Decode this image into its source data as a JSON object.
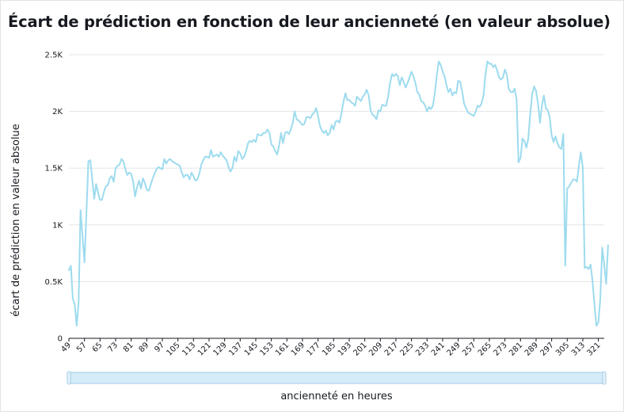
{
  "title": "Écart de prédiction en fonction de leur ancienneté (en valeur absolue)",
  "colors": {
    "line": "#9ddbee",
    "grid": "#e5e5e5",
    "axis": "#16191f",
    "brush_fill": "#d4ebf8",
    "brush_border": "#9fcbe6"
  },
  "chart_data": {
    "type": "line",
    "title": "Écart de prédiction en fonction de leur ancienneté (en valeur absolue)",
    "xlabel": "ancienneté en heures",
    "ylabel": "écart de prédiction en valeur absolue",
    "xlim": [
      49,
      324
    ],
    "ylim": [
      0,
      2500
    ],
    "x_ticks": [
      49,
      57,
      65,
      73,
      81,
      89,
      97,
      105,
      113,
      121,
      129,
      137,
      145,
      153,
      161,
      169,
      177,
      185,
      193,
      201,
      209,
      217,
      225,
      233,
      241,
      249,
      257,
      265,
      273,
      281,
      289,
      297,
      305,
      313,
      321
    ],
    "y_ticks": [
      {
        "value": 0,
        "label": "0"
      },
      {
        "value": 500,
        "label": "0.5K"
      },
      {
        "value": 1000,
        "label": "1K"
      },
      {
        "value": 1500,
        "label": "1.5K"
      },
      {
        "value": 2000,
        "label": "2K"
      },
      {
        "value": 2500,
        "label": "2.5K"
      }
    ],
    "grid": "horizontal",
    "legend": "none",
    "series": [
      {
        "points": [
          [
            49,
            600
          ],
          [
            50,
            640
          ],
          [
            51,
            350
          ],
          [
            52,
            300
          ],
          [
            53,
            110
          ],
          [
            54,
            320
          ],
          [
            55,
            1130
          ],
          [
            56,
            900
          ],
          [
            57,
            670
          ],
          [
            58,
            1100
          ],
          [
            59,
            1560
          ],
          [
            60,
            1570
          ],
          [
            61,
            1400
          ],
          [
            62,
            1230
          ],
          [
            63,
            1360
          ],
          [
            64,
            1280
          ],
          [
            65,
            1220
          ],
          [
            66,
            1220
          ],
          [
            67,
            1290
          ],
          [
            68,
            1340
          ],
          [
            69,
            1350
          ],
          [
            70,
            1410
          ],
          [
            71,
            1430
          ],
          [
            72,
            1380
          ],
          [
            73,
            1500
          ],
          [
            74,
            1520
          ],
          [
            75,
            1530
          ],
          [
            76,
            1580
          ],
          [
            77,
            1560
          ],
          [
            78,
            1490
          ],
          [
            79,
            1440
          ],
          [
            80,
            1460
          ],
          [
            81,
            1450
          ],
          [
            82,
            1380
          ],
          [
            83,
            1250
          ],
          [
            84,
            1330
          ],
          [
            85,
            1390
          ],
          [
            86,
            1320
          ],
          [
            87,
            1410
          ],
          [
            88,
            1370
          ],
          [
            89,
            1310
          ],
          [
            90,
            1300
          ],
          [
            91,
            1350
          ],
          [
            92,
            1410
          ],
          [
            93,
            1450
          ],
          [
            94,
            1490
          ],
          [
            95,
            1510
          ],
          [
            96,
            1500
          ],
          [
            97,
            1490
          ],
          [
            98,
            1580
          ],
          [
            99,
            1540
          ],
          [
            100,
            1570
          ],
          [
            101,
            1580
          ],
          [
            102,
            1560
          ],
          [
            103,
            1550
          ],
          [
            104,
            1540
          ],
          [
            105,
            1530
          ],
          [
            106,
            1520
          ],
          [
            107,
            1460
          ],
          [
            108,
            1420
          ],
          [
            109,
            1440
          ],
          [
            110,
            1440
          ],
          [
            111,
            1400
          ],
          [
            112,
            1460
          ],
          [
            113,
            1430
          ],
          [
            114,
            1390
          ],
          [
            115,
            1400
          ],
          [
            116,
            1450
          ],
          [
            117,
            1530
          ],
          [
            118,
            1570
          ],
          [
            119,
            1600
          ],
          [
            120,
            1600
          ],
          [
            121,
            1590
          ],
          [
            122,
            1660
          ],
          [
            123,
            1600
          ],
          [
            124,
            1610
          ],
          [
            125,
            1620
          ],
          [
            126,
            1600
          ],
          [
            127,
            1640
          ],
          [
            128,
            1610
          ],
          [
            129,
            1590
          ],
          [
            130,
            1570
          ],
          [
            131,
            1510
          ],
          [
            132,
            1470
          ],
          [
            133,
            1500
          ],
          [
            134,
            1600
          ],
          [
            135,
            1560
          ],
          [
            136,
            1650
          ],
          [
            137,
            1630
          ],
          [
            138,
            1580
          ],
          [
            139,
            1600
          ],
          [
            140,
            1650
          ],
          [
            141,
            1720
          ],
          [
            142,
            1740
          ],
          [
            143,
            1730
          ],
          [
            144,
            1750
          ],
          [
            145,
            1730
          ],
          [
            146,
            1800
          ],
          [
            147,
            1790
          ],
          [
            148,
            1790
          ],
          [
            149,
            1810
          ],
          [
            150,
            1810
          ],
          [
            151,
            1840
          ],
          [
            152,
            1810
          ],
          [
            153,
            1710
          ],
          [
            154,
            1690
          ],
          [
            155,
            1650
          ],
          [
            156,
            1620
          ],
          [
            157,
            1700
          ],
          [
            158,
            1810
          ],
          [
            159,
            1720
          ],
          [
            160,
            1810
          ],
          [
            161,
            1820
          ],
          [
            162,
            1800
          ],
          [
            163,
            1840
          ],
          [
            164,
            1900
          ],
          [
            165,
            2000
          ],
          [
            166,
            1930
          ],
          [
            167,
            1920
          ],
          [
            168,
            1900
          ],
          [
            169,
            1880
          ],
          [
            170,
            1890
          ],
          [
            171,
            1950
          ],
          [
            172,
            1950
          ],
          [
            173,
            1940
          ],
          [
            174,
            1970
          ],
          [
            175,
            1990
          ],
          [
            176,
            2030
          ],
          [
            177,
            1960
          ],
          [
            178,
            1870
          ],
          [
            179,
            1830
          ],
          [
            180,
            1810
          ],
          [
            181,
            1830
          ],
          [
            182,
            1790
          ],
          [
            183,
            1810
          ],
          [
            184,
            1880
          ],
          [
            185,
            1840
          ],
          [
            186,
            1910
          ],
          [
            187,
            1920
          ],
          [
            188,
            1900
          ],
          [
            189,
            1980
          ],
          [
            190,
            2080
          ],
          [
            191,
            2160
          ],
          [
            192,
            2100
          ],
          [
            193,
            2100
          ],
          [
            194,
            2080
          ],
          [
            195,
            2070
          ],
          [
            196,
            2050
          ],
          [
            197,
            2130
          ],
          [
            198,
            2110
          ],
          [
            199,
            2090
          ],
          [
            200,
            2130
          ],
          [
            201,
            2150
          ],
          [
            202,
            2190
          ],
          [
            203,
            2140
          ],
          [
            204,
            2010
          ],
          [
            205,
            1970
          ],
          [
            206,
            1960
          ],
          [
            207,
            1930
          ],
          [
            208,
            2010
          ],
          [
            209,
            2000
          ],
          [
            210,
            2060
          ],
          [
            211,
            2050
          ],
          [
            212,
            2050
          ],
          [
            213,
            2130
          ],
          [
            214,
            2250
          ],
          [
            215,
            2330
          ],
          [
            216,
            2310
          ],
          [
            217,
            2330
          ],
          [
            218,
            2310
          ],
          [
            219,
            2230
          ],
          [
            220,
            2300
          ],
          [
            221,
            2260
          ],
          [
            222,
            2210
          ],
          [
            223,
            2250
          ],
          [
            224,
            2300
          ],
          [
            225,
            2350
          ],
          [
            226,
            2310
          ],
          [
            227,
            2250
          ],
          [
            228,
            2170
          ],
          [
            229,
            2150
          ],
          [
            230,
            2090
          ],
          [
            231,
            2080
          ],
          [
            232,
            2050
          ],
          [
            233,
            2000
          ],
          [
            234,
            2040
          ],
          [
            235,
            2020
          ],
          [
            236,
            2050
          ],
          [
            237,
            2160
          ],
          [
            238,
            2320
          ],
          [
            239,
            2440
          ],
          [
            240,
            2410
          ],
          [
            241,
            2350
          ],
          [
            242,
            2310
          ],
          [
            243,
            2230
          ],
          [
            244,
            2170
          ],
          [
            245,
            2200
          ],
          [
            246,
            2140
          ],
          [
            247,
            2170
          ],
          [
            248,
            2160
          ],
          [
            249,
            2270
          ],
          [
            250,
            2260
          ],
          [
            251,
            2180
          ],
          [
            252,
            2070
          ],
          [
            253,
            2030
          ],
          [
            254,
            1990
          ],
          [
            255,
            1980
          ],
          [
            256,
            1970
          ],
          [
            257,
            1960
          ],
          [
            258,
            2000
          ],
          [
            259,
            2050
          ],
          [
            260,
            2040
          ],
          [
            261,
            2070
          ],
          [
            262,
            2140
          ],
          [
            263,
            2330
          ],
          [
            264,
            2440
          ],
          [
            265,
            2420
          ],
          [
            266,
            2420
          ],
          [
            267,
            2390
          ],
          [
            268,
            2410
          ],
          [
            269,
            2360
          ],
          [
            270,
            2300
          ],
          [
            271,
            2280
          ],
          [
            272,
            2300
          ],
          [
            273,
            2370
          ],
          [
            274,
            2320
          ],
          [
            275,
            2200
          ],
          [
            276,
            2170
          ],
          [
            277,
            2170
          ],
          [
            278,
            2200
          ],
          [
            279,
            2100
          ],
          [
            280,
            1550
          ],
          [
            281,
            1590
          ],
          [
            282,
            1760
          ],
          [
            283,
            1740
          ],
          [
            284,
            1680
          ],
          [
            285,
            1760
          ],
          [
            286,
            1980
          ],
          [
            287,
            2150
          ],
          [
            288,
            2220
          ],
          [
            289,
            2180
          ],
          [
            290,
            2070
          ],
          [
            291,
            1900
          ],
          [
            292,
            2050
          ],
          [
            293,
            2140
          ],
          [
            294,
            2030
          ],
          [
            295,
            2010
          ],
          [
            296,
            1950
          ],
          [
            297,
            1790
          ],
          [
            298,
            1730
          ],
          [
            299,
            1780
          ],
          [
            300,
            1720
          ],
          [
            301,
            1680
          ],
          [
            302,
            1670
          ],
          [
            303,
            1800
          ],
          [
            304,
            640
          ],
          [
            305,
            1320
          ],
          [
            306,
            1340
          ],
          [
            307,
            1370
          ],
          [
            308,
            1400
          ],
          [
            309,
            1400
          ],
          [
            310,
            1380
          ],
          [
            311,
            1520
          ],
          [
            312,
            1640
          ],
          [
            313,
            1500
          ],
          [
            314,
            620
          ],
          [
            315,
            630
          ],
          [
            316,
            610
          ],
          [
            317,
            650
          ],
          [
            318,
            500
          ],
          [
            319,
            300
          ],
          [
            320,
            110
          ],
          [
            321,
            140
          ],
          [
            322,
            350
          ],
          [
            323,
            800
          ],
          [
            324,
            650
          ],
          [
            325,
            480
          ],
          [
            326,
            820
          ]
        ]
      }
    ]
  }
}
